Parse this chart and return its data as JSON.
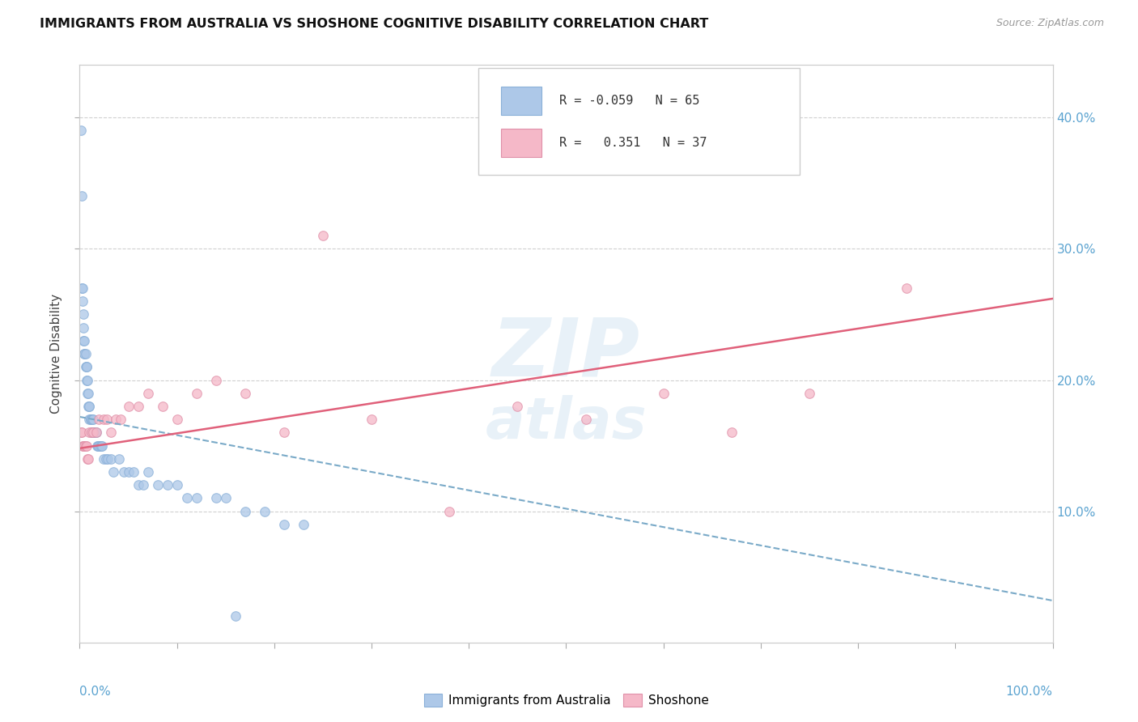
{
  "title": "IMMIGRANTS FROM AUSTRALIA VS SHOSHONE COGNITIVE DISABILITY CORRELATION CHART",
  "source": "Source: ZipAtlas.com",
  "ylabel": "Cognitive Disability",
  "series1_label": "Immigrants from Australia",
  "series1_R": "-0.059",
  "series1_N": "65",
  "series1_color": "#adc8e8",
  "series1_edge": "#8ab0d8",
  "series1_line_color": "#7aaac8",
  "series2_label": "Shoshone",
  "series2_R": "0.351",
  "series2_N": "37",
  "series2_color": "#f5b8c8",
  "series2_edge": "#e090a8",
  "series2_line_color": "#e0607a",
  "xlim": [
    0,
    1.0
  ],
  "ylim": [
    0,
    0.44
  ],
  "yticks": [
    0.1,
    0.2,
    0.3,
    0.4
  ],
  "ytick_labels": [
    "10.0%",
    "20.0%",
    "30.0%",
    "40.0%"
  ],
  "background_color": "#ffffff",
  "series1_x": [
    0.001,
    0.002,
    0.002,
    0.003,
    0.003,
    0.004,
    0.004,
    0.004,
    0.005,
    0.005,
    0.005,
    0.006,
    0.006,
    0.007,
    0.007,
    0.007,
    0.008,
    0.008,
    0.009,
    0.009,
    0.01,
    0.01,
    0.01,
    0.011,
    0.011,
    0.012,
    0.012,
    0.013,
    0.013,
    0.014,
    0.014,
    0.015,
    0.015,
    0.016,
    0.017,
    0.018,
    0.019,
    0.02,
    0.021,
    0.022,
    0.023,
    0.025,
    0.027,
    0.029,
    0.032,
    0.035,
    0.04,
    0.045,
    0.05,
    0.055,
    0.06,
    0.065,
    0.07,
    0.08,
    0.09,
    0.1,
    0.11,
    0.12,
    0.14,
    0.15,
    0.17,
    0.19,
    0.21,
    0.23,
    0.16
  ],
  "series1_y": [
    0.39,
    0.34,
    0.27,
    0.27,
    0.26,
    0.25,
    0.24,
    0.23,
    0.23,
    0.22,
    0.22,
    0.22,
    0.21,
    0.21,
    0.21,
    0.2,
    0.2,
    0.19,
    0.19,
    0.18,
    0.18,
    0.18,
    0.17,
    0.17,
    0.17,
    0.17,
    0.16,
    0.17,
    0.16,
    0.17,
    0.16,
    0.16,
    0.16,
    0.16,
    0.16,
    0.15,
    0.15,
    0.15,
    0.15,
    0.15,
    0.15,
    0.14,
    0.14,
    0.14,
    0.14,
    0.13,
    0.14,
    0.13,
    0.13,
    0.13,
    0.12,
    0.12,
    0.13,
    0.12,
    0.12,
    0.12,
    0.11,
    0.11,
    0.11,
    0.11,
    0.1,
    0.1,
    0.09,
    0.09,
    0.02
  ],
  "series2_x": [
    0.001,
    0.002,
    0.003,
    0.004,
    0.005,
    0.006,
    0.007,
    0.008,
    0.009,
    0.01,
    0.012,
    0.014,
    0.017,
    0.02,
    0.025,
    0.028,
    0.032,
    0.037,
    0.042,
    0.05,
    0.06,
    0.07,
    0.085,
    0.1,
    0.12,
    0.14,
    0.17,
    0.21,
    0.25,
    0.3,
    0.38,
    0.45,
    0.52,
    0.6,
    0.67,
    0.75,
    0.85
  ],
  "series2_y": [
    0.16,
    0.16,
    0.15,
    0.15,
    0.15,
    0.15,
    0.15,
    0.14,
    0.14,
    0.16,
    0.16,
    0.16,
    0.16,
    0.17,
    0.17,
    0.17,
    0.16,
    0.17,
    0.17,
    0.18,
    0.18,
    0.19,
    0.18,
    0.17,
    0.19,
    0.2,
    0.19,
    0.16,
    0.31,
    0.17,
    0.1,
    0.18,
    0.17,
    0.19,
    0.16,
    0.19,
    0.27
  ],
  "trend1_x0": 0.0,
  "trend1_x1": 1.0,
  "trend1_y0": 0.172,
  "trend1_y1": 0.032,
  "trend2_x0": 0.0,
  "trend2_x1": 1.0,
  "trend2_y0": 0.148,
  "trend2_y1": 0.262
}
